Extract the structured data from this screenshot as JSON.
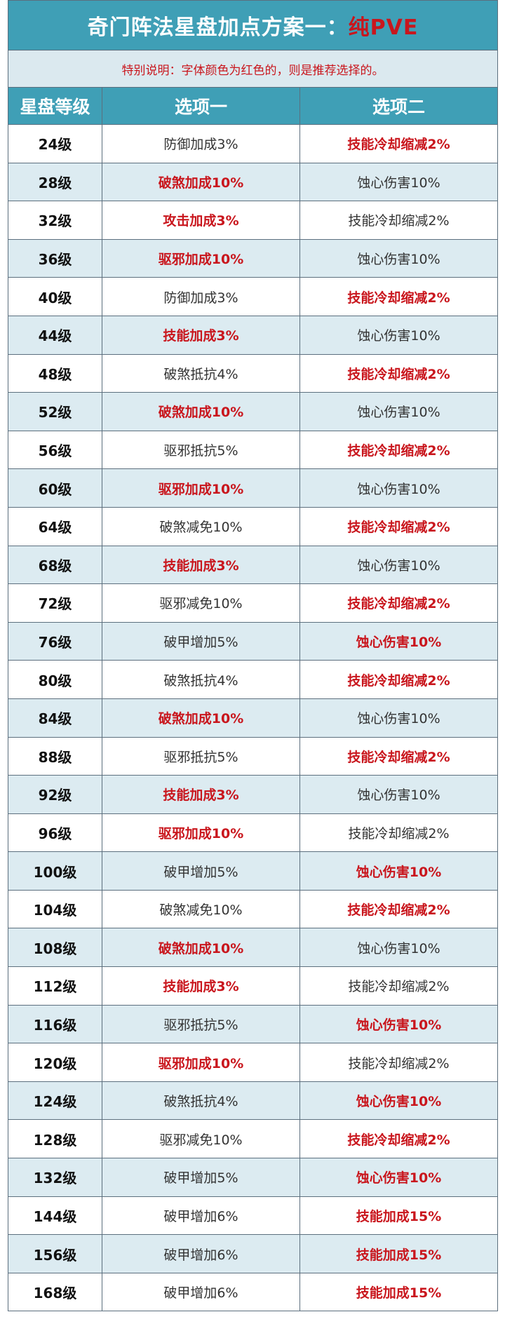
{
  "title": {
    "main": "奇门阵法星盘加点方案一：",
    "accent": "纯PVE"
  },
  "note": "特别说明：字体颜色为红色的，则是推荐选择的。",
  "headers": [
    "星盘等级",
    "选项一",
    "选项二"
  ],
  "colors": {
    "header_bg": "#3f9fb6",
    "row_alt_bg": "#dcebf1",
    "recommended_text": "#c9161d",
    "border": "#5c6f7e"
  },
  "rows": [
    {
      "level": "24级",
      "option1": "防御加成3%",
      "option2": "技能冷却缩减2%",
      "recommended": 2
    },
    {
      "level": "28级",
      "option1": "破煞加成10%",
      "option2": "蚀心伤害10%",
      "recommended": 1
    },
    {
      "level": "32级",
      "option1": "攻击加成3%",
      "option2": "技能冷却缩减2%",
      "recommended": 1
    },
    {
      "level": "36级",
      "option1": "驱邪加成10%",
      "option2": "蚀心伤害10%",
      "recommended": 1
    },
    {
      "level": "40级",
      "option1": "防御加成3%",
      "option2": "技能冷却缩减2%",
      "recommended": 2
    },
    {
      "level": "44级",
      "option1": "技能加成3%",
      "option2": "蚀心伤害10%",
      "recommended": 1
    },
    {
      "level": "48级",
      "option1": "破煞抵抗4%",
      "option2": "技能冷却缩减2%",
      "recommended": 2
    },
    {
      "level": "52级",
      "option1": "破煞加成10%",
      "option2": "蚀心伤害10%",
      "recommended": 1
    },
    {
      "level": "56级",
      "option1": "驱邪抵抗5%",
      "option2": "技能冷却缩减2%",
      "recommended": 2
    },
    {
      "level": "60级",
      "option1": "驱邪加成10%",
      "option2": "蚀心伤害10%",
      "recommended": 1
    },
    {
      "level": "64级",
      "option1": "破煞减免10%",
      "option2": "技能冷却缩减2%",
      "recommended": 2
    },
    {
      "level": "68级",
      "option1": "技能加成3%",
      "option2": "蚀心伤害10%",
      "recommended": 1
    },
    {
      "level": "72级",
      "option1": "驱邪减免10%",
      "option2": "技能冷却缩减2%",
      "recommended": 2
    },
    {
      "level": "76级",
      "option1": "破甲增加5%",
      "option2": "蚀心伤害10%",
      "recommended": 2
    },
    {
      "level": "80级",
      "option1": "破煞抵抗4%",
      "option2": "技能冷却缩减2%",
      "recommended": 2
    },
    {
      "level": "84级",
      "option1": "破煞加成10%",
      "option2": "蚀心伤害10%",
      "recommended": 1
    },
    {
      "level": "88级",
      "option1": "驱邪抵抗5%",
      "option2": "技能冷却缩减2%",
      "recommended": 2
    },
    {
      "level": "92级",
      "option1": "技能加成3%",
      "option2": "蚀心伤害10%",
      "recommended": 1
    },
    {
      "level": "96级",
      "option1": "驱邪加成10%",
      "option2": "技能冷却缩减2%",
      "recommended": 1
    },
    {
      "level": "100级",
      "option1": "破甲增加5%",
      "option2": "蚀心伤害10%",
      "recommended": 2
    },
    {
      "level": "104级",
      "option1": "破煞减免10%",
      "option2": "技能冷却缩减2%",
      "recommended": 2
    },
    {
      "level": "108级",
      "option1": "破煞加成10%",
      "option2": "蚀心伤害10%",
      "recommended": 1
    },
    {
      "level": "112级",
      "option1": "技能加成3%",
      "option2": "技能冷却缩减2%",
      "recommended": 1
    },
    {
      "level": "116级",
      "option1": "驱邪抵抗5%",
      "option2": "蚀心伤害10%",
      "recommended": 2
    },
    {
      "level": "120级",
      "option1": "驱邪加成10%",
      "option2": "技能冷却缩减2%",
      "recommended": 1
    },
    {
      "level": "124级",
      "option1": "破煞抵抗4%",
      "option2": "蚀心伤害10%",
      "recommended": 2
    },
    {
      "level": "128级",
      "option1": "驱邪减免10%",
      "option2": "技能冷却缩减2%",
      "recommended": 2
    },
    {
      "level": "132级",
      "option1": "破甲增加5%",
      "option2": "蚀心伤害10%",
      "recommended": 2
    },
    {
      "level": "144级",
      "option1": "破甲增加6%",
      "option2": "技能加成15%",
      "recommended": 2
    },
    {
      "level": "156级",
      "option1": "破甲增加6%",
      "option2": "技能加成15%",
      "recommended": 2
    },
    {
      "level": "168级",
      "option1": "破甲增加6%",
      "option2": "技能加成15%",
      "recommended": 2
    }
  ]
}
